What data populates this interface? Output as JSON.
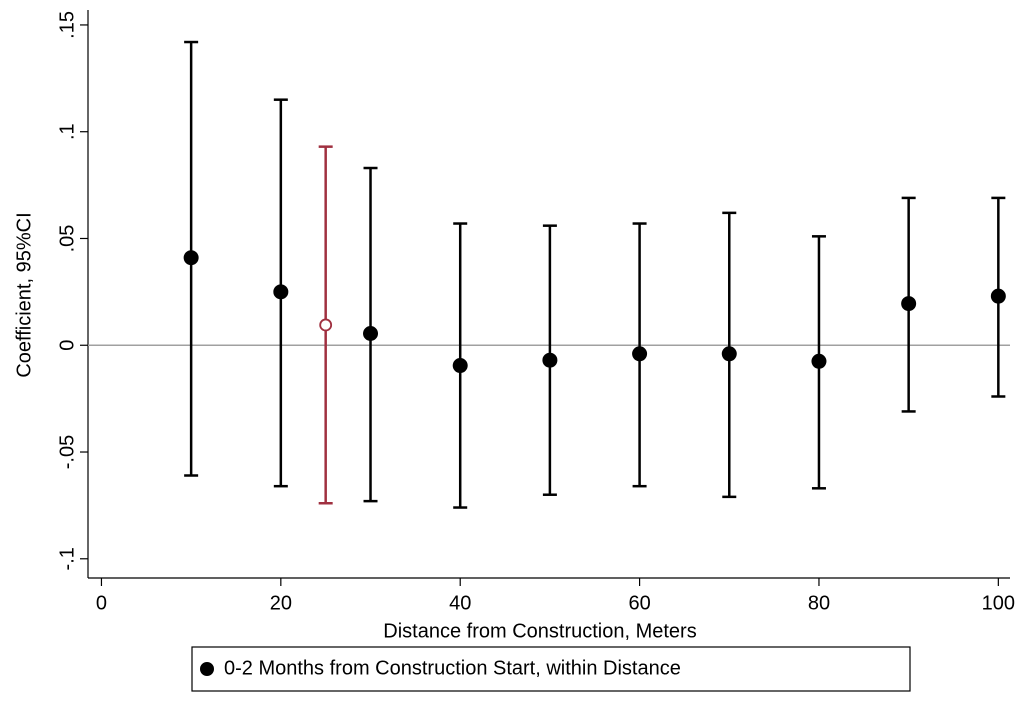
{
  "chart_data": {
    "type": "errorbar",
    "xlabel": "Distance from Construction, Meters",
    "ylabel": "Coefficient, 95%CI",
    "xlim": [
      -1.5,
      101.3
    ],
    "xticks": [
      0,
      20,
      40,
      60,
      80,
      100
    ],
    "ylim": [
      -0.109,
      0.157
    ],
    "yticks": [
      {
        "value": -0.1,
        "label": "-.1"
      },
      {
        "value": -0.05,
        "label": "-.05"
      },
      0,
      {
        "value": 0.05,
        "label": ".05"
      },
      {
        "value": 0.1,
        "label": ".1"
      },
      {
        "value": 0.15,
        "label": ".15"
      }
    ],
    "refline": 0,
    "refline_color": "#a0a0a0",
    "series": [
      {
        "name": "0-2 Months from Construction Start, within Distance",
        "color": "#000000",
        "marker": "filled",
        "x": [
          10,
          20,
          30,
          40,
          50,
          60,
          70,
          80,
          90,
          100
        ],
        "values": [
          0.041,
          0.025,
          0.0055,
          -0.0095,
          -0.007,
          -0.004,
          -0.004,
          -0.0075,
          0.0195,
          0.023
        ],
        "lower": [
          -0.061,
          -0.066,
          -0.073,
          -0.076,
          -0.07,
          -0.066,
          -0.071,
          -0.067,
          -0.031,
          -0.024
        ],
        "upper": [
          0.142,
          0.115,
          0.083,
          0.057,
          0.056,
          0.057,
          0.062,
          0.051,
          0.069,
          0.069
        ]
      },
      {
        "color": "#a03040",
        "marker": "hollow",
        "x": [
          25
        ],
        "values": [
          0.0095
        ],
        "lower": [
          -0.074
        ],
        "upper": [
          0.093
        ]
      }
    ]
  }
}
